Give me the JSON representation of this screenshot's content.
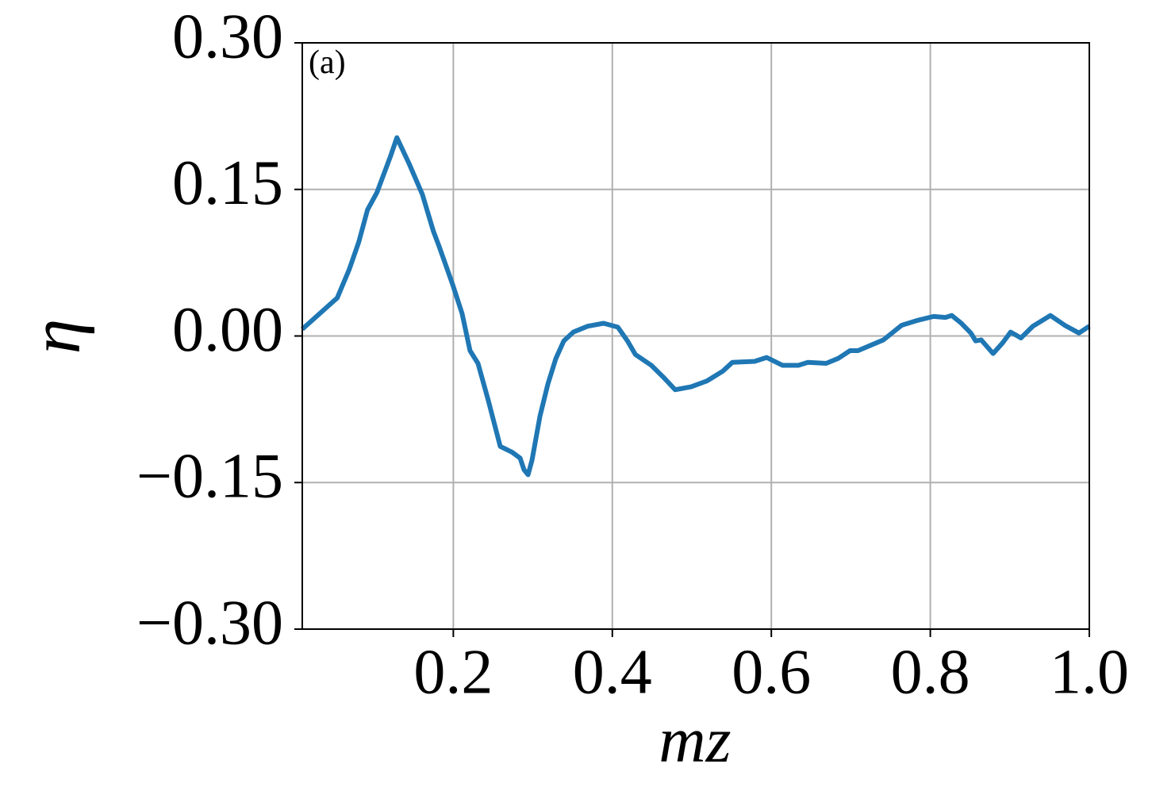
{
  "chart_data": {
    "type": "line",
    "annotation": "(a)",
    "xlabel": "mz",
    "ylabel": "η",
    "x": [
      0.01,
      0.054,
      0.069,
      0.081,
      0.092,
      0.104,
      0.121,
      0.129,
      0.144,
      0.161,
      0.175,
      0.182,
      0.199,
      0.211,
      0.221,
      0.231,
      0.244,
      0.259,
      0.274,
      0.284,
      0.289,
      0.294,
      0.299,
      0.309,
      0.319,
      0.329,
      0.339,
      0.351,
      0.369,
      0.389,
      0.407,
      0.419,
      0.429,
      0.449,
      0.464,
      0.479,
      0.499,
      0.519,
      0.539,
      0.551,
      0.579,
      0.594,
      0.614,
      0.634,
      0.646,
      0.669,
      0.684,
      0.699,
      0.709,
      0.741,
      0.764,
      0.784,
      0.804,
      0.819,
      0.827,
      0.839,
      0.851,
      0.857,
      0.864,
      0.879,
      0.891,
      0.901,
      0.914,
      0.929,
      0.951,
      0.969,
      0.987,
      1.0
    ],
    "series": [
      {
        "color": "#1f77b4",
        "values": [
          0.007,
          0.039,
          0.068,
          0.096,
          0.129,
          0.147,
          0.184,
          0.203,
          0.177,
          0.145,
          0.107,
          0.092,
          0.053,
          0.023,
          -0.015,
          -0.028,
          -0.066,
          -0.113,
          -0.119,
          -0.125,
          -0.137,
          -0.142,
          -0.127,
          -0.082,
          -0.049,
          -0.023,
          -0.005,
          0.004,
          0.01,
          0.013,
          0.009,
          -0.005,
          -0.019,
          -0.03,
          -0.042,
          -0.055,
          -0.052,
          -0.046,
          -0.036,
          -0.027,
          -0.026,
          -0.022,
          -0.03,
          -0.03,
          -0.027,
          -0.028,
          -0.023,
          -0.015,
          -0.015,
          -0.004,
          0.011,
          0.016,
          0.02,
          0.019,
          0.021,
          0.013,
          0.003,
          -0.005,
          -0.004,
          -0.018,
          -0.007,
          0.004,
          -0.002,
          0.01,
          0.021,
          0.011,
          0.003,
          0.01
        ]
      }
    ],
    "xlim": [
      0.01,
      1.0
    ],
    "xticks": [
      0.2,
      0.4,
      0.6,
      0.8,
      {
        "value": 1,
        "label": "1.0"
      }
    ],
    "ylim": [
      -0.3,
      0.3
    ],
    "yticks": [
      {
        "value": -0.3,
        "label": "−0.30"
      },
      {
        "value": -0.15,
        "label": "−0.15"
      },
      {
        "value": 0,
        "label": "0.00"
      },
      {
        "value": 0.15,
        "label": "0.15"
      },
      {
        "value": 0.3,
        "label": "0.30"
      }
    ],
    "grid": true
  }
}
